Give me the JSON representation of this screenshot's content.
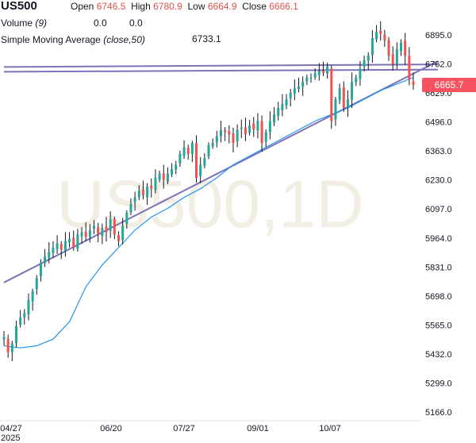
{
  "header": {
    "symbol": "US500",
    "open_label": "Open",
    "open_value": "6746.5",
    "high_label": "High",
    "high_value": "6780.9",
    "low_label": "Low",
    "low_value": "6664.9",
    "close_label": "Close",
    "close_value": "6666.1",
    "volume_label": "Volume",
    "volume_param": "(9)",
    "volume_value_1": "0.0",
    "volume_value_2": "0.0",
    "sma_label": "Simple Moving Average",
    "sma_param": "(close,50)",
    "sma_value": "6733.1"
  },
  "watermark": "US500,1D",
  "last_price": "6665.7",
  "colors": {
    "up": "#26a69a",
    "down": "#ef5350",
    "candle": "#131722",
    "sma": "#2196f3",
    "trendline": "#7e72b8",
    "price_tag": "#f7525f"
  },
  "chart_data": {
    "type": "candlestick",
    "symbol": "US500",
    "timeframe": "1D",
    "x_ticks": [
      "04/27",
      "06/20",
      "07/27",
      "09/01",
      "10/07"
    ],
    "x_year_label": "2025",
    "y_ticks": [
      "6895.0",
      "6762.0",
      "6629.0",
      "6496.0",
      "6363.0",
      "6230.0",
      "6097.0",
      "5964.0",
      "5831.0",
      "5698.0",
      "5565.0",
      "5432.0",
      "5299.0",
      "5166.0"
    ],
    "ylim": [
      5150,
      7000
    ],
    "last_price": 6665.7,
    "close_series": [
      5510,
      5440,
      5480,
      5560,
      5600,
      5620,
      5680,
      5720,
      5780,
      5850,
      5880,
      5900,
      5920,
      5940,
      5910,
      5950,
      5960,
      5920,
      5980,
      5990,
      5970,
      6000,
      6020,
      5980,
      6010,
      5990,
      6050,
      5980,
      5950,
      6020,
      6080,
      6120,
      6150,
      6180,
      6160,
      6200,
      6190,
      6240,
      6260,
      6230,
      6260,
      6280,
      6300,
      6350,
      6380,
      6350,
      6400,
      6240,
      6300,
      6330,
      6390,
      6400,
      6430,
      6460,
      6450,
      6440,
      6400,
      6460,
      6470,
      6440,
      6480,
      6460,
      6500,
      6400,
      6450,
      6500,
      6530,
      6560,
      6580,
      6600,
      6630,
      6650,
      6660,
      6680,
      6700,
      6700,
      6720,
      6730,
      6720,
      6750,
      6500,
      6600,
      6650,
      6560,
      6600,
      6680,
      6700,
      6740,
      6780,
      6800,
      6880,
      6910,
      6900,
      6870,
      6800,
      6760,
      6830,
      6860,
      6800,
      6690,
      6666
    ],
    "sma": {
      "name": "Simple Moving Average (close,50)",
      "last_value": 6733.1,
      "points": [
        [
          0,
          5470
        ],
        [
          4,
          5460
        ],
        [
          8,
          5470
        ],
        [
          12,
          5500
        ],
        [
          16,
          5580
        ],
        [
          20,
          5740
        ],
        [
          24,
          5840
        ],
        [
          28,
          5920
        ],
        [
          32,
          6000
        ],
        [
          36,
          6060
        ],
        [
          40,
          6100
        ],
        [
          44,
          6150
        ],
        [
          48,
          6190
        ],
        [
          52,
          6240
        ],
        [
          56,
          6300
        ],
        [
          60,
          6340
        ],
        [
          64,
          6380
        ],
        [
          68,
          6420
        ],
        [
          72,
          6460
        ],
        [
          76,
          6500
        ],
        [
          80,
          6530
        ],
        [
          84,
          6560
        ],
        [
          88,
          6600
        ],
        [
          92,
          6640
        ],
        [
          96,
          6670
        ],
        [
          100,
          6700
        ]
      ]
    },
    "trendlines": [
      {
        "from": [
          0,
          5760
        ],
        "to": [
          106,
          6775
        ]
      },
      {
        "from": [
          0,
          6748
        ],
        "to": [
          106,
          6760
        ]
      },
      {
        "from": [
          0,
          6726
        ],
        "to": [
          106,
          6736
        ]
      }
    ]
  }
}
